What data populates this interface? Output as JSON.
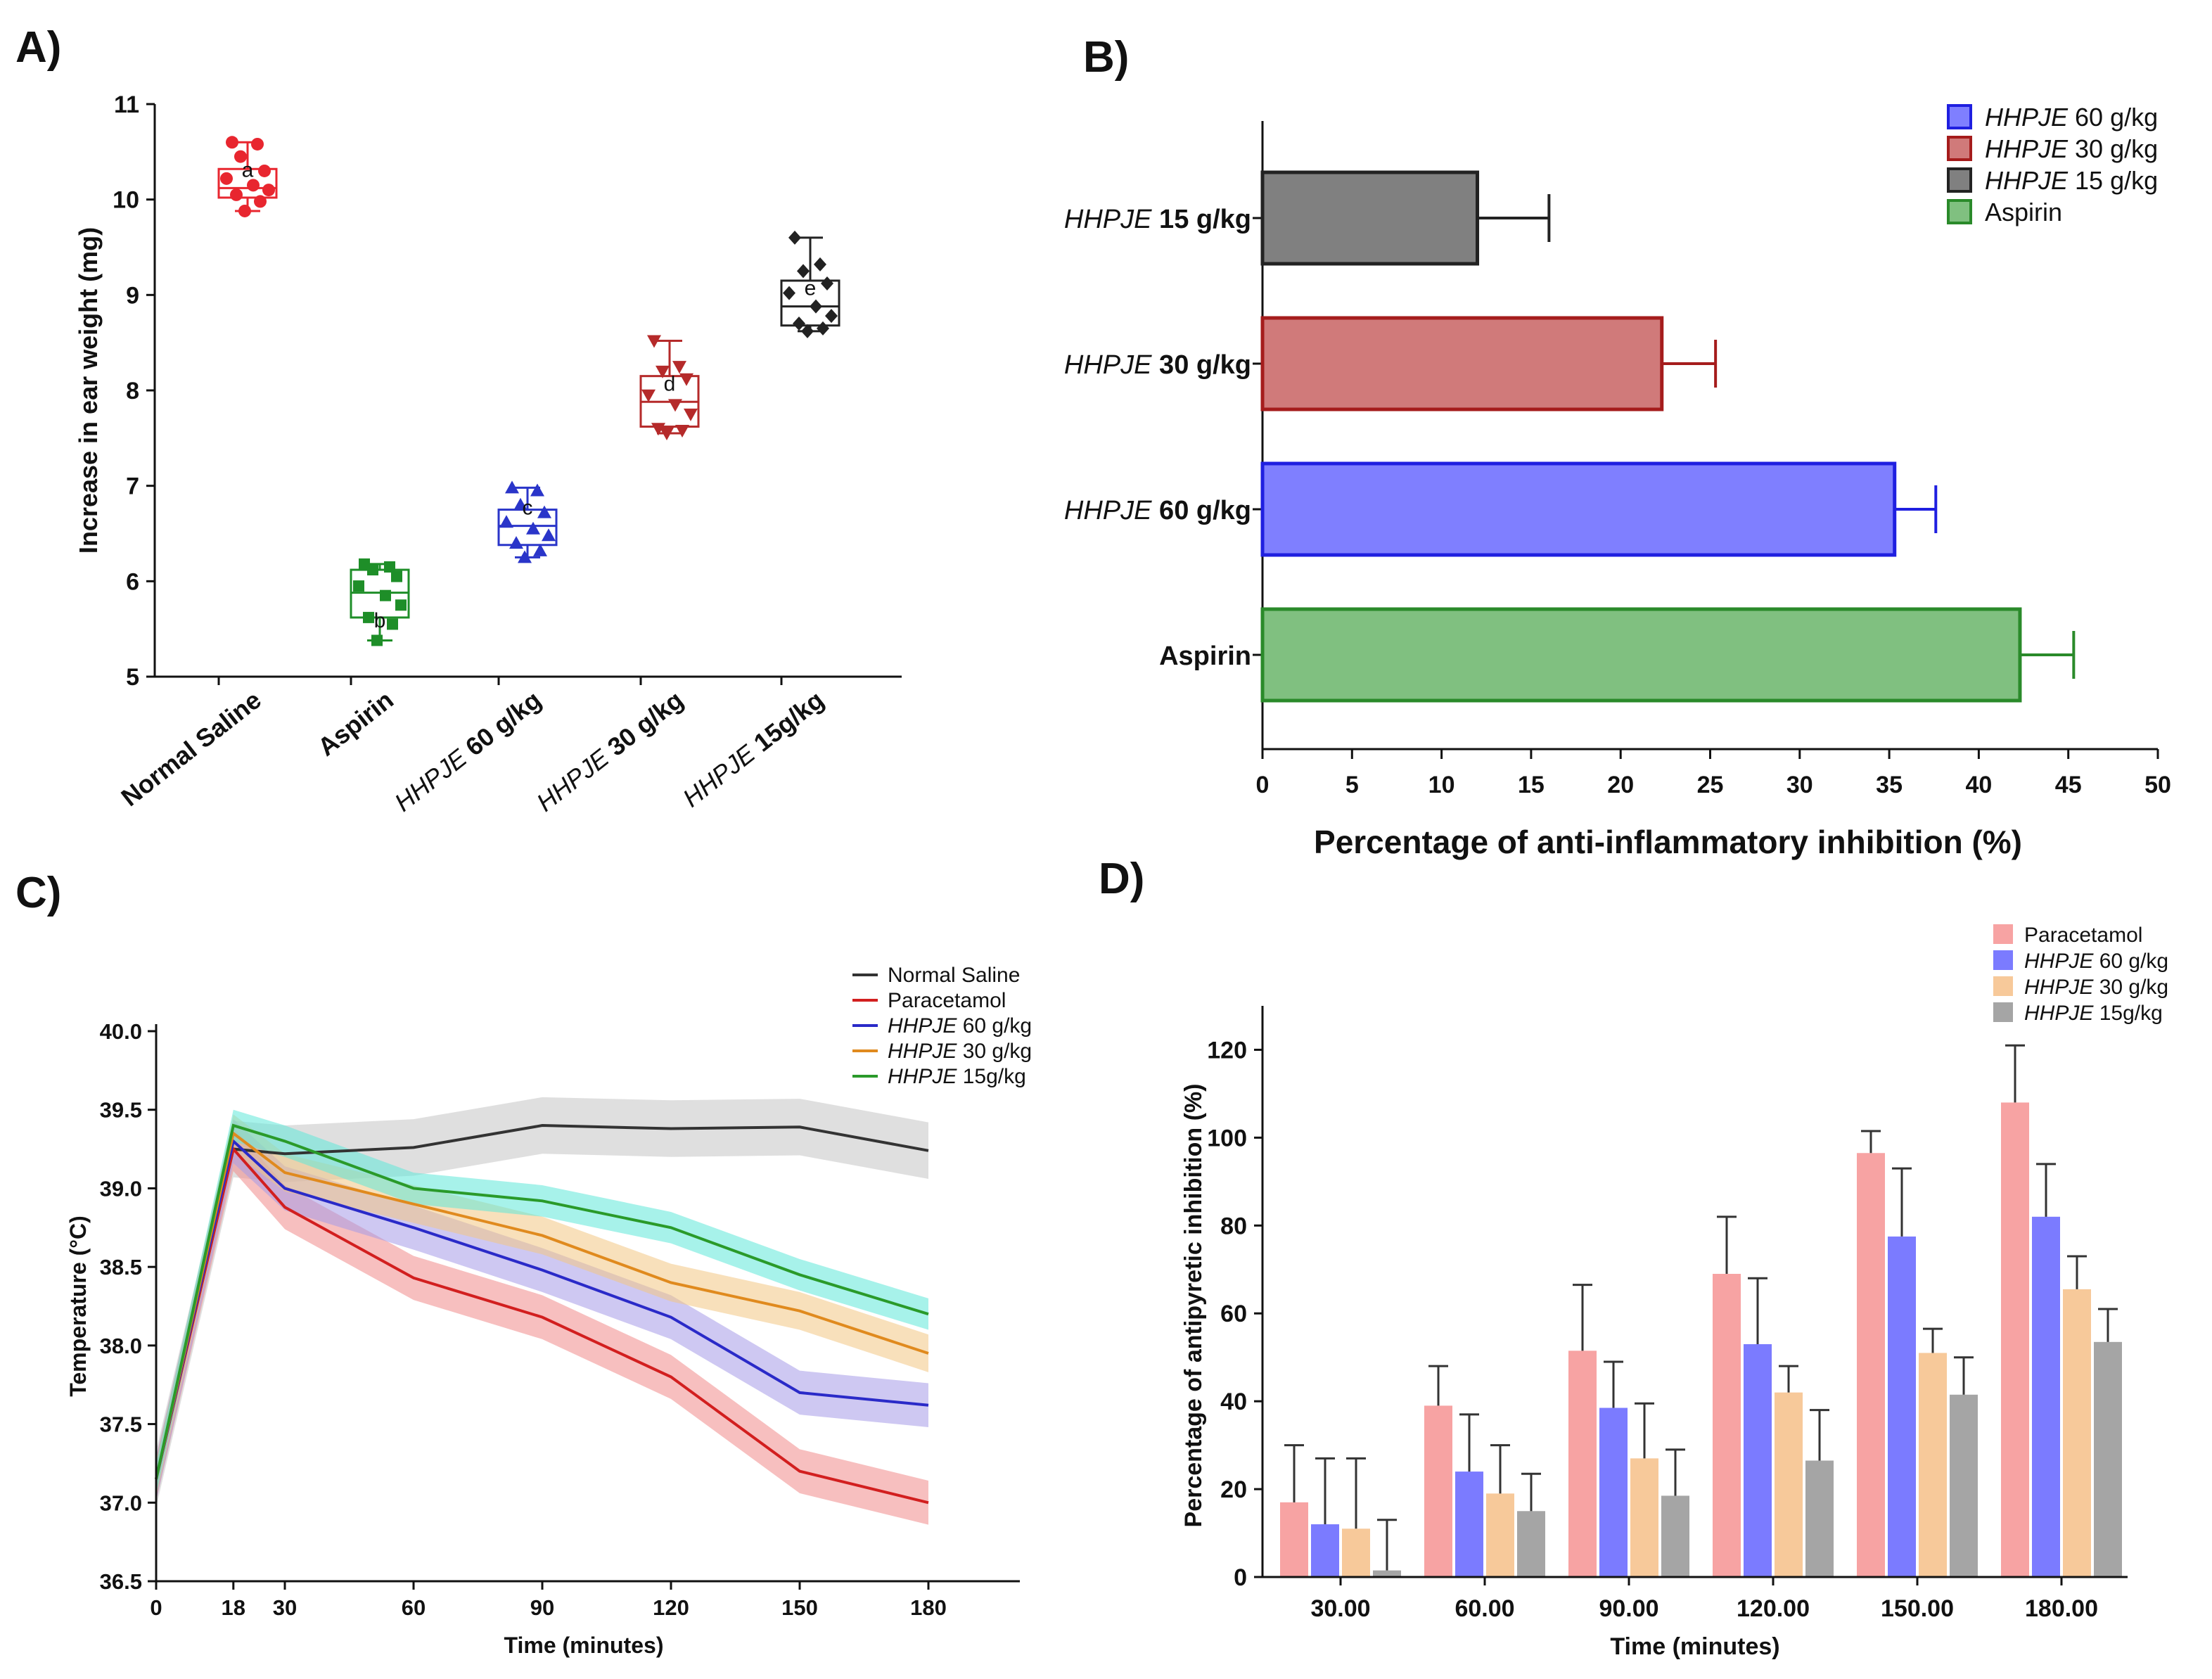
{
  "panels": {
    "a": {
      "label": "A)"
    },
    "b": {
      "label": "B)"
    },
    "c": {
      "label": "C)"
    },
    "d": {
      "label": "D)"
    }
  },
  "chart_data": [
    {
      "id": "A",
      "type": "box",
      "title": "",
      "xlabel": "",
      "ylabel": "Increase in ear weight (mg)",
      "ylim": [
        5,
        11
      ],
      "yticks": [
        5,
        6,
        7,
        8,
        9,
        10,
        11
      ],
      "groups": [
        {
          "italic": "",
          "text": "Normal Saline",
          "letter": "a",
          "color": "#e8262f",
          "marker": "circle",
          "min": 9.88,
          "q1": 10.02,
          "median": 10.12,
          "q3": 10.32,
          "max": 10.6,
          "points": [
            10.6,
            10.58,
            10.45,
            10.3,
            10.22,
            10.15,
            10.1,
            10.05,
            9.98,
            9.88
          ]
        },
        {
          "italic": "",
          "text": "Aspirin",
          "letter": "b",
          "color": "#1e8e28",
          "marker": "square",
          "min": 5.38,
          "q1": 5.62,
          "median": 5.88,
          "q3": 6.12,
          "max": 6.18,
          "points": [
            6.18,
            6.15,
            6.12,
            6.05,
            5.95,
            5.85,
            5.75,
            5.62,
            5.55,
            5.38
          ]
        },
        {
          "italic": "HHPJE",
          "text": " 60 g/kg",
          "letter": "c",
          "color": "#2a35c9",
          "marker": "triangle",
          "min": 6.25,
          "q1": 6.38,
          "median": 6.58,
          "q3": 6.75,
          "max": 6.98,
          "points": [
            6.98,
            6.95,
            6.8,
            6.72,
            6.62,
            6.55,
            6.48,
            6.4,
            6.32,
            6.25
          ]
        },
        {
          "italic": "HHPJE",
          "text": " 30 g/kg",
          "letter": "d",
          "color": "#b52a2a",
          "marker": "tri-down",
          "min": 7.55,
          "q1": 7.62,
          "median": 7.88,
          "q3": 8.15,
          "max": 8.52,
          "points": [
            8.52,
            8.25,
            8.2,
            8.12,
            7.95,
            7.85,
            7.75,
            7.6,
            7.58,
            7.55
          ]
        },
        {
          "italic": "HHPJE",
          "text": " 15g/kg",
          "letter": "e",
          "color": "#222222",
          "marker": "diamond",
          "min": 8.62,
          "q1": 8.68,
          "median": 8.88,
          "q3": 9.15,
          "max": 9.6,
          "points": [
            9.6,
            9.32,
            9.25,
            9.12,
            9.02,
            8.88,
            8.78,
            8.7,
            8.65,
            8.62
          ]
        }
      ]
    },
    {
      "id": "B",
      "type": "bar",
      "orientation": "horizontal",
      "xlabel": "Percentage of anti-inflammatory inhibition (%)",
      "xlim": [
        0,
        50
      ],
      "xticks": [
        0,
        5,
        10,
        15,
        20,
        25,
        30,
        35,
        40,
        45,
        50
      ],
      "bars": [
        {
          "italic": "HHPJE",
          "text": " 15 g/kg",
          "value": 12,
          "error": 4,
          "fill": "#808080",
          "stroke": "#222222"
        },
        {
          "italic": "HHPJE",
          "text": " 30 g/kg",
          "value": 22.3,
          "error": 3,
          "fill": "#d07a7a",
          "stroke": "#a51c1c"
        },
        {
          "italic": "HHPJE",
          "text": " 60 g/kg",
          "value": 35.3,
          "error": 2.3,
          "fill": "#7f7fff",
          "stroke": "#1f1fe0"
        },
        {
          "italic": "",
          "text": "Aspirin",
          "value": 42.3,
          "error": 3,
          "fill": "#80c080",
          "stroke": "#2a8a2a"
        }
      ],
      "legend": [
        {
          "italic": "HHPJE",
          "text": " 60 g/kg",
          "fill": "#7f7fff",
          "stroke": "#1f1fe0"
        },
        {
          "italic": "HHPJE",
          "text": " 30 g/kg",
          "fill": "#d07a7a",
          "stroke": "#a51c1c"
        },
        {
          "italic": "HHPJE",
          "text": " 15 g/kg",
          "fill": "#808080",
          "stroke": "#222222"
        },
        {
          "italic": "",
          "text": "Aspirin",
          "fill": "#80c080",
          "stroke": "#2a8a2a"
        }
      ],
      "legend_position": "top-right"
    },
    {
      "id": "C",
      "type": "line",
      "xlabel": "Time (minutes)",
      "ylabel": "Temperature (°C)",
      "xlim": [
        0,
        200
      ],
      "xticks": [
        0,
        18,
        30,
        60,
        90,
        120,
        150,
        180
      ],
      "ylim": [
        36.5,
        40.0
      ],
      "yticks": [
        "36.5",
        "37.0",
        "37.5",
        "38.0",
        "38.5",
        "39.0",
        "39.5",
        "40.0"
      ],
      "x": [
        0,
        18,
        30,
        60,
        90,
        120,
        150,
        180
      ],
      "series": [
        {
          "italic": "",
          "text": "Normal Saline",
          "color": "#333333",
          "band": "#c4c4c4",
          "values": [
            37.15,
            39.25,
            39.22,
            39.26,
            39.4,
            39.38,
            39.39,
            39.24
          ],
          "error": 0.18
        },
        {
          "italic": "",
          "text": "Paracetamol",
          "color": "#d21f1f",
          "band": "#f08a8a",
          "values": [
            37.15,
            39.25,
            38.88,
            38.43,
            38.18,
            37.8,
            37.2,
            37.0
          ],
          "error": 0.14
        },
        {
          "italic": "HHPJE",
          "text": " 60 g/kg",
          "color": "#2a2ac8",
          "band": "#a59be8",
          "values": [
            37.15,
            39.3,
            39.0,
            38.75,
            38.48,
            38.18,
            37.7,
            37.62
          ],
          "error": 0.14
        },
        {
          "italic": "HHPJE",
          "text": " 30 g/kg",
          "color": "#e08a1e",
          "band": "#f3c784",
          "values": [
            37.15,
            39.35,
            39.1,
            38.9,
            38.7,
            38.4,
            38.22,
            37.95
          ],
          "error": 0.12
        },
        {
          "italic": "HHPJE",
          "text": " 15g/kg",
          "color": "#2a9a2a",
          "band": "#5fe8d8",
          "values": [
            37.15,
            39.4,
            39.3,
            39.0,
            38.92,
            38.75,
            38.45,
            38.2
          ],
          "error": 0.1
        }
      ],
      "legend_position": "top-right"
    },
    {
      "id": "D",
      "type": "bar",
      "orientation": "vertical",
      "xlabel": "Time (minutes)",
      "ylabel": "Percentage of antipyretic inhibition (%)",
      "ylim": [
        0,
        130
      ],
      "yticks": [
        0,
        20,
        40,
        60,
        80,
        100,
        120
      ],
      "categories": [
        "30.00",
        "60.00",
        "90.00",
        "120.00",
        "150.00",
        "180.00"
      ],
      "series": [
        {
          "italic": "",
          "text": "Paracetamol",
          "color": "#f7a3a3",
          "values": [
            17,
            39,
            51.5,
            69,
            96.5,
            108
          ],
          "errors": [
            13,
            9,
            15,
            13,
            5,
            13
          ]
        },
        {
          "italic": "HHPJE",
          "text": " 60 g/kg",
          "color": "#7b7bff",
          "values": [
            12,
            24,
            38.5,
            53,
            77.5,
            82
          ],
          "errors": [
            15,
            13,
            10.5,
            15,
            15.5,
            12
          ]
        },
        {
          "italic": "HHPJE",
          "text": " 30 g/kg",
          "color": "#f7c99a",
          "values": [
            11,
            19,
            27,
            42,
            51,
            65.5
          ],
          "errors": [
            16,
            11,
            12.5,
            6,
            5.5,
            7.5
          ]
        },
        {
          "italic": "HHPJE",
          "text": " 15g/kg",
          "color": "#a5a5a5",
          "values": [
            1.5,
            15,
            18.5,
            26.5,
            41.5,
            53.5
          ],
          "errors": [
            11.5,
            8.5,
            10.5,
            11.5,
            8.5,
            7.5
          ]
        }
      ],
      "legend_position": "top-right"
    }
  ]
}
